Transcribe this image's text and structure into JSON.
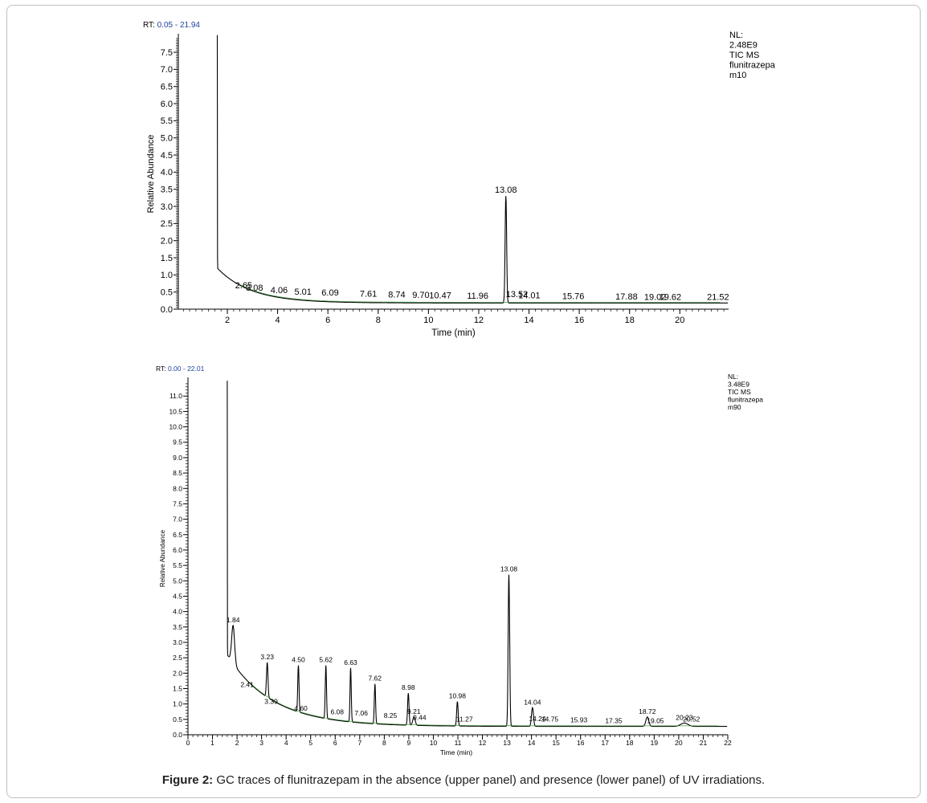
{
  "caption": {
    "prefix": "Figure 2:",
    "text": " GC traces of flunitrazepam in the absence (upper panel) and presence (lower panel) of UV irradiations."
  },
  "colors": {
    "trace": "#000000",
    "baseline": "#2e8b2e",
    "rt_value": "#1f3fa0"
  },
  "chart_data": [
    {
      "type": "line",
      "panel": "upper",
      "rt_label": "RT:",
      "rt_range_text": "0.05 - 21.94",
      "info_lines": [
        "NL:",
        "2.48E9",
        "TIC  MS",
        "flunitrazepa",
        "m10"
      ],
      "xlabel": "Time (min)",
      "ylabel": "Relative Abundance",
      "xlim": [
        0.05,
        21.94
      ],
      "ylim": [
        0,
        7.9
      ],
      "x_ticks": [
        2,
        4,
        6,
        8,
        10,
        12,
        14,
        16,
        18,
        20
      ],
      "y_ticks": [
        0.0,
        0.5,
        1.0,
        1.5,
        2.0,
        2.5,
        3.0,
        3.5,
        4.0,
        4.5,
        5.0,
        5.5,
        6.0,
        6.5,
        7.0,
        7.5
      ],
      "y_tick_labels": [
        "0.0",
        "0.5",
        "1.0",
        "1.5",
        "2.0",
        "2.5",
        "3.0",
        "3.5",
        "4.0",
        "4.5",
        "5.0",
        "5.5",
        "6.0",
        "6.5",
        "7.0",
        "7.5"
      ],
      "solvent_front": {
        "x": 1.6,
        "top": 8.0
      },
      "peak_labels": [
        {
          "x": 2.65,
          "y": 0.52,
          "label": "2.65"
        },
        {
          "x": 3.08,
          "y": 0.45,
          "label": "3.08"
        },
        {
          "x": 4.06,
          "y": 0.38,
          "label": "4.06"
        },
        {
          "x": 5.01,
          "y": 0.33,
          "label": "5.01"
        },
        {
          "x": 6.09,
          "y": 0.3,
          "label": "6.09"
        },
        {
          "x": 7.61,
          "y": 0.27,
          "label": "7.61"
        },
        {
          "x": 8.74,
          "y": 0.25,
          "label": "8.74"
        },
        {
          "x": 9.7,
          "y": 0.23,
          "label": "9.70"
        },
        {
          "x": 10.47,
          "y": 0.22,
          "label": "10.47"
        },
        {
          "x": 11.96,
          "y": 0.21,
          "label": "11.96"
        },
        {
          "x": 13.08,
          "y": 3.3,
          "label": "13.08"
        },
        {
          "x": 13.52,
          "y": 0.26,
          "label": "13.52"
        },
        {
          "x": 14.01,
          "y": 0.22,
          "label": "14.01"
        },
        {
          "x": 15.76,
          "y": 0.2,
          "label": "15.76"
        },
        {
          "x": 17.88,
          "y": 0.19,
          "label": "17.88"
        },
        {
          "x": 19.02,
          "y": 0.18,
          "label": "19.02"
        },
        {
          "x": 19.62,
          "y": 0.18,
          "label": "19.62"
        },
        {
          "x": 21.52,
          "y": 0.17,
          "label": "21.52"
        }
      ],
      "decay": {
        "start": 1.2,
        "end": 0.18,
        "rate": 0.75
      }
    },
    {
      "type": "line",
      "panel": "lower",
      "rt_label": "RT:",
      "rt_range_text": "0.00 - 22.01",
      "info_lines": [
        "NL:",
        "3.48E9",
        "TIC  MS",
        "flunitrazepa",
        "m90"
      ],
      "xlabel": "Time (min)",
      "ylabel": "Relative Abundance",
      "xlim": [
        0,
        22
      ],
      "ylim": [
        0,
        11.45
      ],
      "x_ticks": [
        0,
        1,
        2,
        3,
        4,
        5,
        6,
        7,
        8,
        9,
        10,
        11,
        12,
        13,
        14,
        15,
        16,
        17,
        18,
        19,
        20,
        21,
        22
      ],
      "y_ticks": [
        0.0,
        0.5,
        1.0,
        1.5,
        2.0,
        2.5,
        3.0,
        3.5,
        4.0,
        4.5,
        5.0,
        5.5,
        6.0,
        6.5,
        7.0,
        7.5,
        8.0,
        8.5,
        9.0,
        9.5,
        10.0,
        10.5,
        11.0
      ],
      "y_tick_labels": [
        "0.0",
        "0.5",
        "1.0",
        "1.5",
        "2.0",
        "2.5",
        "3.0",
        "3.5",
        "4.0",
        "4.5",
        "5.0",
        "5.5",
        "6.0",
        "6.5",
        "7.0",
        "7.5",
        "8.0",
        "8.5",
        "9.0",
        "9.5",
        "10.0",
        "10.5",
        "11.0"
      ],
      "solvent_front": {
        "x": 1.6,
        "top": 11.5
      },
      "peak_labels": [
        {
          "x": 1.84,
          "y": 3.55,
          "label": "1.84"
        },
        {
          "x": 2.41,
          "y": 1.45,
          "label": "2.41"
        },
        {
          "x": 3.23,
          "y": 2.35,
          "label": "3.23"
        },
        {
          "x": 3.39,
          "y": 0.9,
          "label": "3.39"
        },
        {
          "x": 4.5,
          "y": 2.25,
          "label": "4.50"
        },
        {
          "x": 4.6,
          "y": 0.68,
          "label": "4.60"
        },
        {
          "x": 5.62,
          "y": 2.25,
          "label": "5.62"
        },
        {
          "x": 6.08,
          "y": 0.56,
          "label": "6.08"
        },
        {
          "x": 6.63,
          "y": 2.17,
          "label": "6.63"
        },
        {
          "x": 7.06,
          "y": 0.52,
          "label": "7.06"
        },
        {
          "x": 7.62,
          "y": 1.65,
          "label": "7.62"
        },
        {
          "x": 8.25,
          "y": 0.44,
          "label": "8.25"
        },
        {
          "x": 8.98,
          "y": 1.35,
          "label": "8.98"
        },
        {
          "x": 9.21,
          "y": 0.58,
          "label": "9.21"
        },
        {
          "x": 9.44,
          "y": 0.38,
          "label": "9.44"
        },
        {
          "x": 10.98,
          "y": 1.08,
          "label": "10.98"
        },
        {
          "x": 11.27,
          "y": 0.33,
          "label": "11.27"
        },
        {
          "x": 13.08,
          "y": 5.2,
          "label": "13.08"
        },
        {
          "x": 14.04,
          "y": 0.88,
          "label": "14.04"
        },
        {
          "x": 14.24,
          "y": 0.34,
          "label": "14.24"
        },
        {
          "x": 14.75,
          "y": 0.33,
          "label": "14.75"
        },
        {
          "x": 15.93,
          "y": 0.3,
          "label": "15.93"
        },
        {
          "x": 17.35,
          "y": 0.28,
          "label": "17.35"
        },
        {
          "x": 18.72,
          "y": 0.58,
          "label": "18.72"
        },
        {
          "x": 19.05,
          "y": 0.28,
          "label": "19.05"
        },
        {
          "x": 20.23,
          "y": 0.38,
          "label": "20.23"
        },
        {
          "x": 20.52,
          "y": 0.32,
          "label": "20.52"
        }
      ],
      "peaks": [
        {
          "x": 1.84,
          "h": 3.55,
          "w": 0.06
        },
        {
          "x": 3.23,
          "h": 2.35,
          "w": 0.03
        },
        {
          "x": 4.5,
          "h": 2.25,
          "w": 0.025
        },
        {
          "x": 5.62,
          "h": 2.25,
          "w": 0.025
        },
        {
          "x": 6.63,
          "h": 2.17,
          "w": 0.025
        },
        {
          "x": 7.62,
          "h": 1.65,
          "w": 0.025
        },
        {
          "x": 8.98,
          "h": 1.35,
          "w": 0.03
        },
        {
          "x": 9.21,
          "h": 0.58,
          "w": 0.05
        },
        {
          "x": 10.98,
          "h": 1.08,
          "w": 0.03
        },
        {
          "x": 13.08,
          "h": 5.2,
          "w": 0.03
        },
        {
          "x": 14.04,
          "h": 0.88,
          "w": 0.04
        },
        {
          "x": 18.72,
          "h": 0.58,
          "w": 0.06
        },
        {
          "x": 20.23,
          "h": 0.38,
          "w": 0.15
        }
      ],
      "decay": {
        "start": 2.6,
        "end": 0.27,
        "rate": 0.55
      }
    }
  ]
}
